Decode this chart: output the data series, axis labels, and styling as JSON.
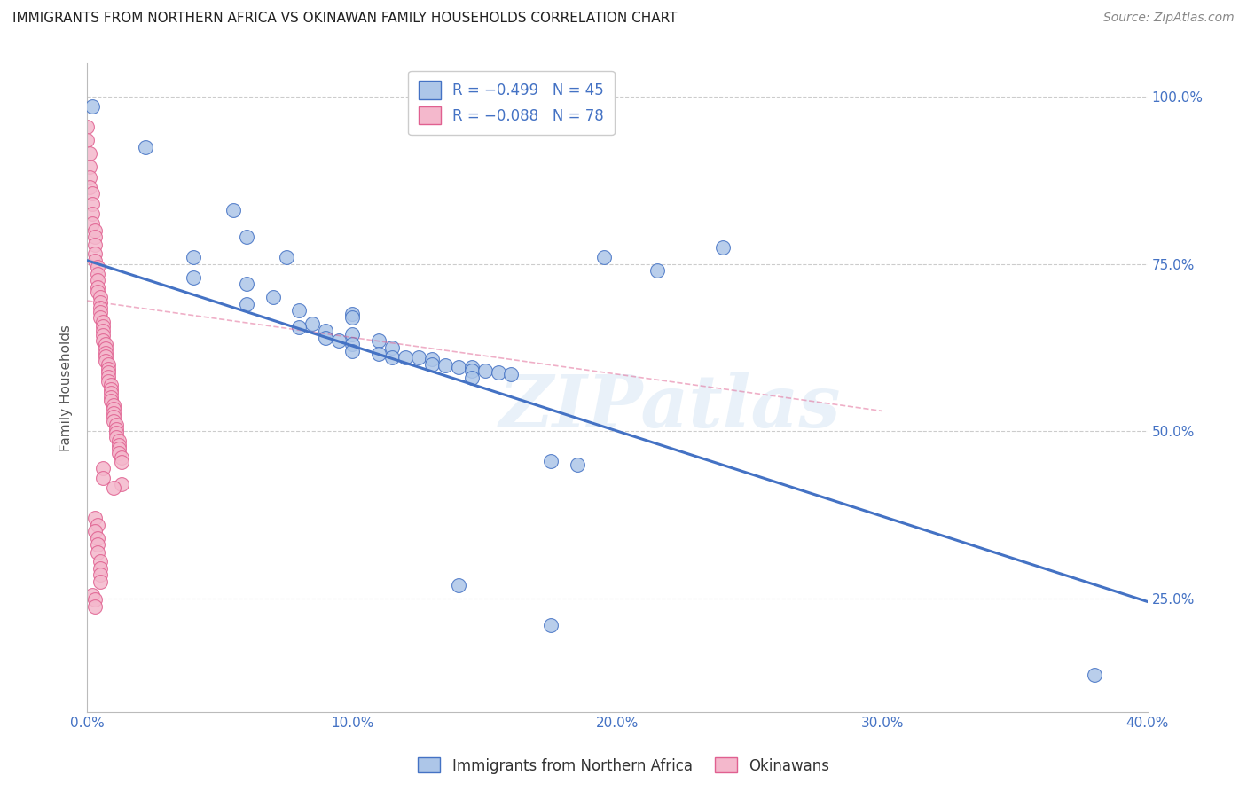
{
  "title": "IMMIGRANTS FROM NORTHERN AFRICA VS OKINAWAN FAMILY HOUSEHOLDS CORRELATION CHART",
  "source": "Source: ZipAtlas.com",
  "ylabel_label": "Family Households",
  "xlim": [
    0.0,
    0.4
  ],
  "ylim": [
    0.08,
    1.05
  ],
  "legend_bottom": [
    "Immigrants from Northern Africa",
    "Okinawans"
  ],
  "watermark": "ZIPatlas",
  "blue_scatter": [
    [
      0.002,
      0.985
    ],
    [
      0.022,
      0.925
    ],
    [
      0.055,
      0.83
    ],
    [
      0.06,
      0.79
    ],
    [
      0.04,
      0.76
    ],
    [
      0.075,
      0.76
    ],
    [
      0.04,
      0.73
    ],
    [
      0.06,
      0.72
    ],
    [
      0.07,
      0.7
    ],
    [
      0.06,
      0.69
    ],
    [
      0.08,
      0.68
    ],
    [
      0.1,
      0.675
    ],
    [
      0.1,
      0.67
    ],
    [
      0.085,
      0.66
    ],
    [
      0.08,
      0.655
    ],
    [
      0.09,
      0.65
    ],
    [
      0.1,
      0.645
    ],
    [
      0.09,
      0.64
    ],
    [
      0.095,
      0.635
    ],
    [
      0.11,
      0.635
    ],
    [
      0.1,
      0.63
    ],
    [
      0.115,
      0.625
    ],
    [
      0.1,
      0.62
    ],
    [
      0.11,
      0.615
    ],
    [
      0.115,
      0.61
    ],
    [
      0.12,
      0.61
    ],
    [
      0.125,
      0.61
    ],
    [
      0.13,
      0.608
    ],
    [
      0.13,
      0.6
    ],
    [
      0.135,
      0.598
    ],
    [
      0.14,
      0.595
    ],
    [
      0.145,
      0.595
    ],
    [
      0.145,
      0.59
    ],
    [
      0.15,
      0.59
    ],
    [
      0.155,
      0.588
    ],
    [
      0.16,
      0.585
    ],
    [
      0.145,
      0.58
    ],
    [
      0.195,
      0.76
    ],
    [
      0.24,
      0.775
    ],
    [
      0.215,
      0.74
    ],
    [
      0.175,
      0.455
    ],
    [
      0.185,
      0.45
    ],
    [
      0.14,
      0.27
    ],
    [
      0.175,
      0.21
    ],
    [
      0.38,
      0.135
    ]
  ],
  "pink_scatter": [
    [
      0.0,
      0.955
    ],
    [
      0.0,
      0.935
    ],
    [
      0.001,
      0.915
    ],
    [
      0.001,
      0.895
    ],
    [
      0.001,
      0.88
    ],
    [
      0.001,
      0.865
    ],
    [
      0.002,
      0.855
    ],
    [
      0.002,
      0.84
    ],
    [
      0.002,
      0.825
    ],
    [
      0.002,
      0.81
    ],
    [
      0.003,
      0.8
    ],
    [
      0.003,
      0.79
    ],
    [
      0.003,
      0.778
    ],
    [
      0.003,
      0.765
    ],
    [
      0.003,
      0.755
    ],
    [
      0.004,
      0.745
    ],
    [
      0.004,
      0.735
    ],
    [
      0.004,
      0.725
    ],
    [
      0.004,
      0.715
    ],
    [
      0.004,
      0.708
    ],
    [
      0.005,
      0.7
    ],
    [
      0.005,
      0.693
    ],
    [
      0.005,
      0.685
    ],
    [
      0.005,
      0.678
    ],
    [
      0.005,
      0.67
    ],
    [
      0.006,
      0.663
    ],
    [
      0.006,
      0.656
    ],
    [
      0.006,
      0.65
    ],
    [
      0.006,
      0.643
    ],
    [
      0.006,
      0.636
    ],
    [
      0.007,
      0.63
    ],
    [
      0.007,
      0.623
    ],
    [
      0.007,
      0.617
    ],
    [
      0.007,
      0.611
    ],
    [
      0.007,
      0.605
    ],
    [
      0.008,
      0.599
    ],
    [
      0.008,
      0.593
    ],
    [
      0.008,
      0.587
    ],
    [
      0.008,
      0.581
    ],
    [
      0.008,
      0.575
    ],
    [
      0.009,
      0.569
    ],
    [
      0.009,
      0.563
    ],
    [
      0.009,
      0.557
    ],
    [
      0.009,
      0.551
    ],
    [
      0.009,
      0.545
    ],
    [
      0.01,
      0.539
    ],
    [
      0.01,
      0.533
    ],
    [
      0.01,
      0.527
    ],
    [
      0.01,
      0.521
    ],
    [
      0.01,
      0.515
    ],
    [
      0.011,
      0.509
    ],
    [
      0.011,
      0.503
    ],
    [
      0.011,
      0.497
    ],
    [
      0.011,
      0.491
    ],
    [
      0.012,
      0.485
    ],
    [
      0.012,
      0.479
    ],
    [
      0.012,
      0.473
    ],
    [
      0.012,
      0.467
    ],
    [
      0.013,
      0.46
    ],
    [
      0.013,
      0.454
    ],
    [
      0.006,
      0.445
    ],
    [
      0.006,
      0.43
    ],
    [
      0.013,
      0.42
    ],
    [
      0.01,
      0.415
    ],
    [
      0.003,
      0.37
    ],
    [
      0.004,
      0.36
    ],
    [
      0.003,
      0.35
    ],
    [
      0.004,
      0.34
    ],
    [
      0.004,
      0.33
    ],
    [
      0.004,
      0.318
    ],
    [
      0.005,
      0.305
    ],
    [
      0.005,
      0.295
    ],
    [
      0.005,
      0.285
    ],
    [
      0.005,
      0.275
    ],
    [
      0.002,
      0.255
    ],
    [
      0.003,
      0.248
    ],
    [
      0.003,
      0.238
    ]
  ],
  "blue_line_x": [
    0.0,
    0.4
  ],
  "blue_line_y": [
    0.755,
    0.245
  ],
  "pink_line_x": [
    0.0,
    0.3
  ],
  "pink_line_y": [
    0.695,
    0.53
  ],
  "blue_color": "#4472c4",
  "pink_color": "#e06090",
  "blue_scatter_color": "#adc6e8",
  "pink_scatter_color": "#f4b8cc",
  "grid_color": "#cccccc",
  "background_color": "#ffffff",
  "x_ticks": [
    0.0,
    0.1,
    0.2,
    0.3,
    0.4
  ],
  "y_ticks": [
    0.25,
    0.5,
    0.75,
    1.0
  ],
  "tick_color": "#4472c4",
  "title_fontsize": 11,
  "source_text": "Source: ZipAtlas.com"
}
